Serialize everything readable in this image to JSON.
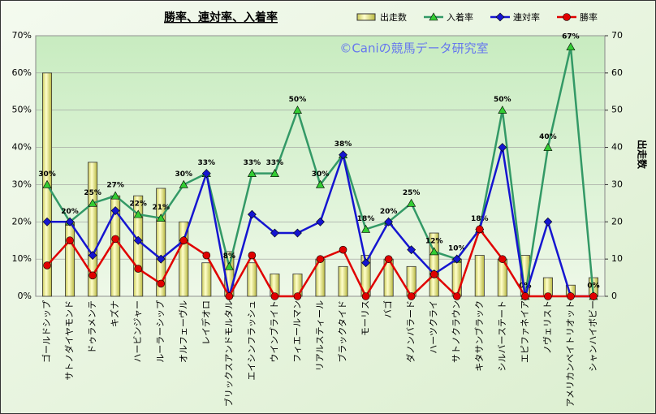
{
  "chart_data": {
    "type": "combo",
    "title": "勝率、連対率、入着率",
    "annotation": "©Caniの競馬データ研究室",
    "y2label": "出走数",
    "categories": [
      "ゴールドシップ",
      "サトノダイヤモンド",
      "ドゥラメンテ",
      "キズナ",
      "ハービンジャー",
      "ルーラーシップ",
      "オルフェーヴル",
      "レイデオロ",
      "ブリックスアンドモルタル",
      "エイシンフラッシュ",
      "ウインブライト",
      "フィエールマン",
      "リアルスティール",
      "ブラックタイド",
      "モーリス",
      "バゴ",
      "ダノンバラード",
      "ハーツクライ",
      "サトノクラウン",
      "キタサンブラック",
      "シルバーステート",
      "エピファネイア",
      "ノヴェリスト",
      "アメリカンペイトリオット",
      "シャンハイボビー"
    ],
    "series": [
      {
        "name": "出走数",
        "type": "bar",
        "axis": "y2",
        "color": "#eeee99",
        "values": [
          60,
          20,
          36,
          27,
          27,
          29,
          20,
          9,
          12,
          9,
          6,
          6,
          10,
          8,
          11,
          10,
          8,
          17,
          10,
          11,
          10,
          11,
          5,
          3,
          5
        ]
      },
      {
        "name": "入着率",
        "type": "line",
        "marker": "triangle",
        "color": "#339966",
        "values": [
          30,
          20,
          25,
          27,
          22,
          21,
          30,
          33,
          8,
          33,
          33,
          50,
          30,
          38,
          18,
          20,
          25,
          12,
          10,
          18,
          50,
          0,
          40,
          67,
          0
        ],
        "value_labels": [
          "30%",
          "20%",
          "25%",
          "27%",
          "22%",
          "21%",
          "30%",
          "33%",
          "8%",
          "33%",
          "33%",
          "50%",
          "30%",
          "38%",
          "18%",
          "20%",
          "25%",
          "12%",
          "10%",
          "18%",
          "50%",
          "0%",
          "40%",
          "67%",
          "0%"
        ]
      },
      {
        "name": "連対率",
        "type": "line",
        "marker": "diamond",
        "color": "#1515d0",
        "values": [
          20,
          20,
          11,
          23,
          15,
          10,
          15,
          33,
          0,
          22,
          17,
          17,
          20,
          38,
          9,
          20,
          12.5,
          6,
          10,
          18,
          40,
          0,
          20,
          0,
          0
        ]
      },
      {
        "name": "勝率",
        "type": "line",
        "marker": "circle",
        "color": "#e00000",
        "values": [
          8.3,
          15,
          5.6,
          15.4,
          7.4,
          3.4,
          15,
          11,
          0,
          11,
          0,
          0,
          10,
          12.5,
          0,
          10,
          0,
          5.9,
          0,
          18,
          10,
          0,
          0,
          0,
          0
        ]
      }
    ],
    "ylim": [
      0,
      70
    ],
    "yticks": [
      {
        "value": 0,
        "label": "0%"
      },
      {
        "value": 10,
        "label": "10%"
      },
      {
        "value": 20,
        "label": "20%"
      },
      {
        "value": 30,
        "label": "30%"
      },
      {
        "value": 40,
        "label": "40%"
      },
      {
        "value": 50,
        "label": "50%"
      },
      {
        "value": 60,
        "label": "60%"
      },
      {
        "value": 70,
        "label": "70%"
      }
    ],
    "y2lim": [
      0,
      70
    ],
    "y2ticks": [
      0,
      10,
      20,
      30,
      40,
      50,
      60,
      70
    ],
    "grid": true,
    "legend": "top-right"
  }
}
